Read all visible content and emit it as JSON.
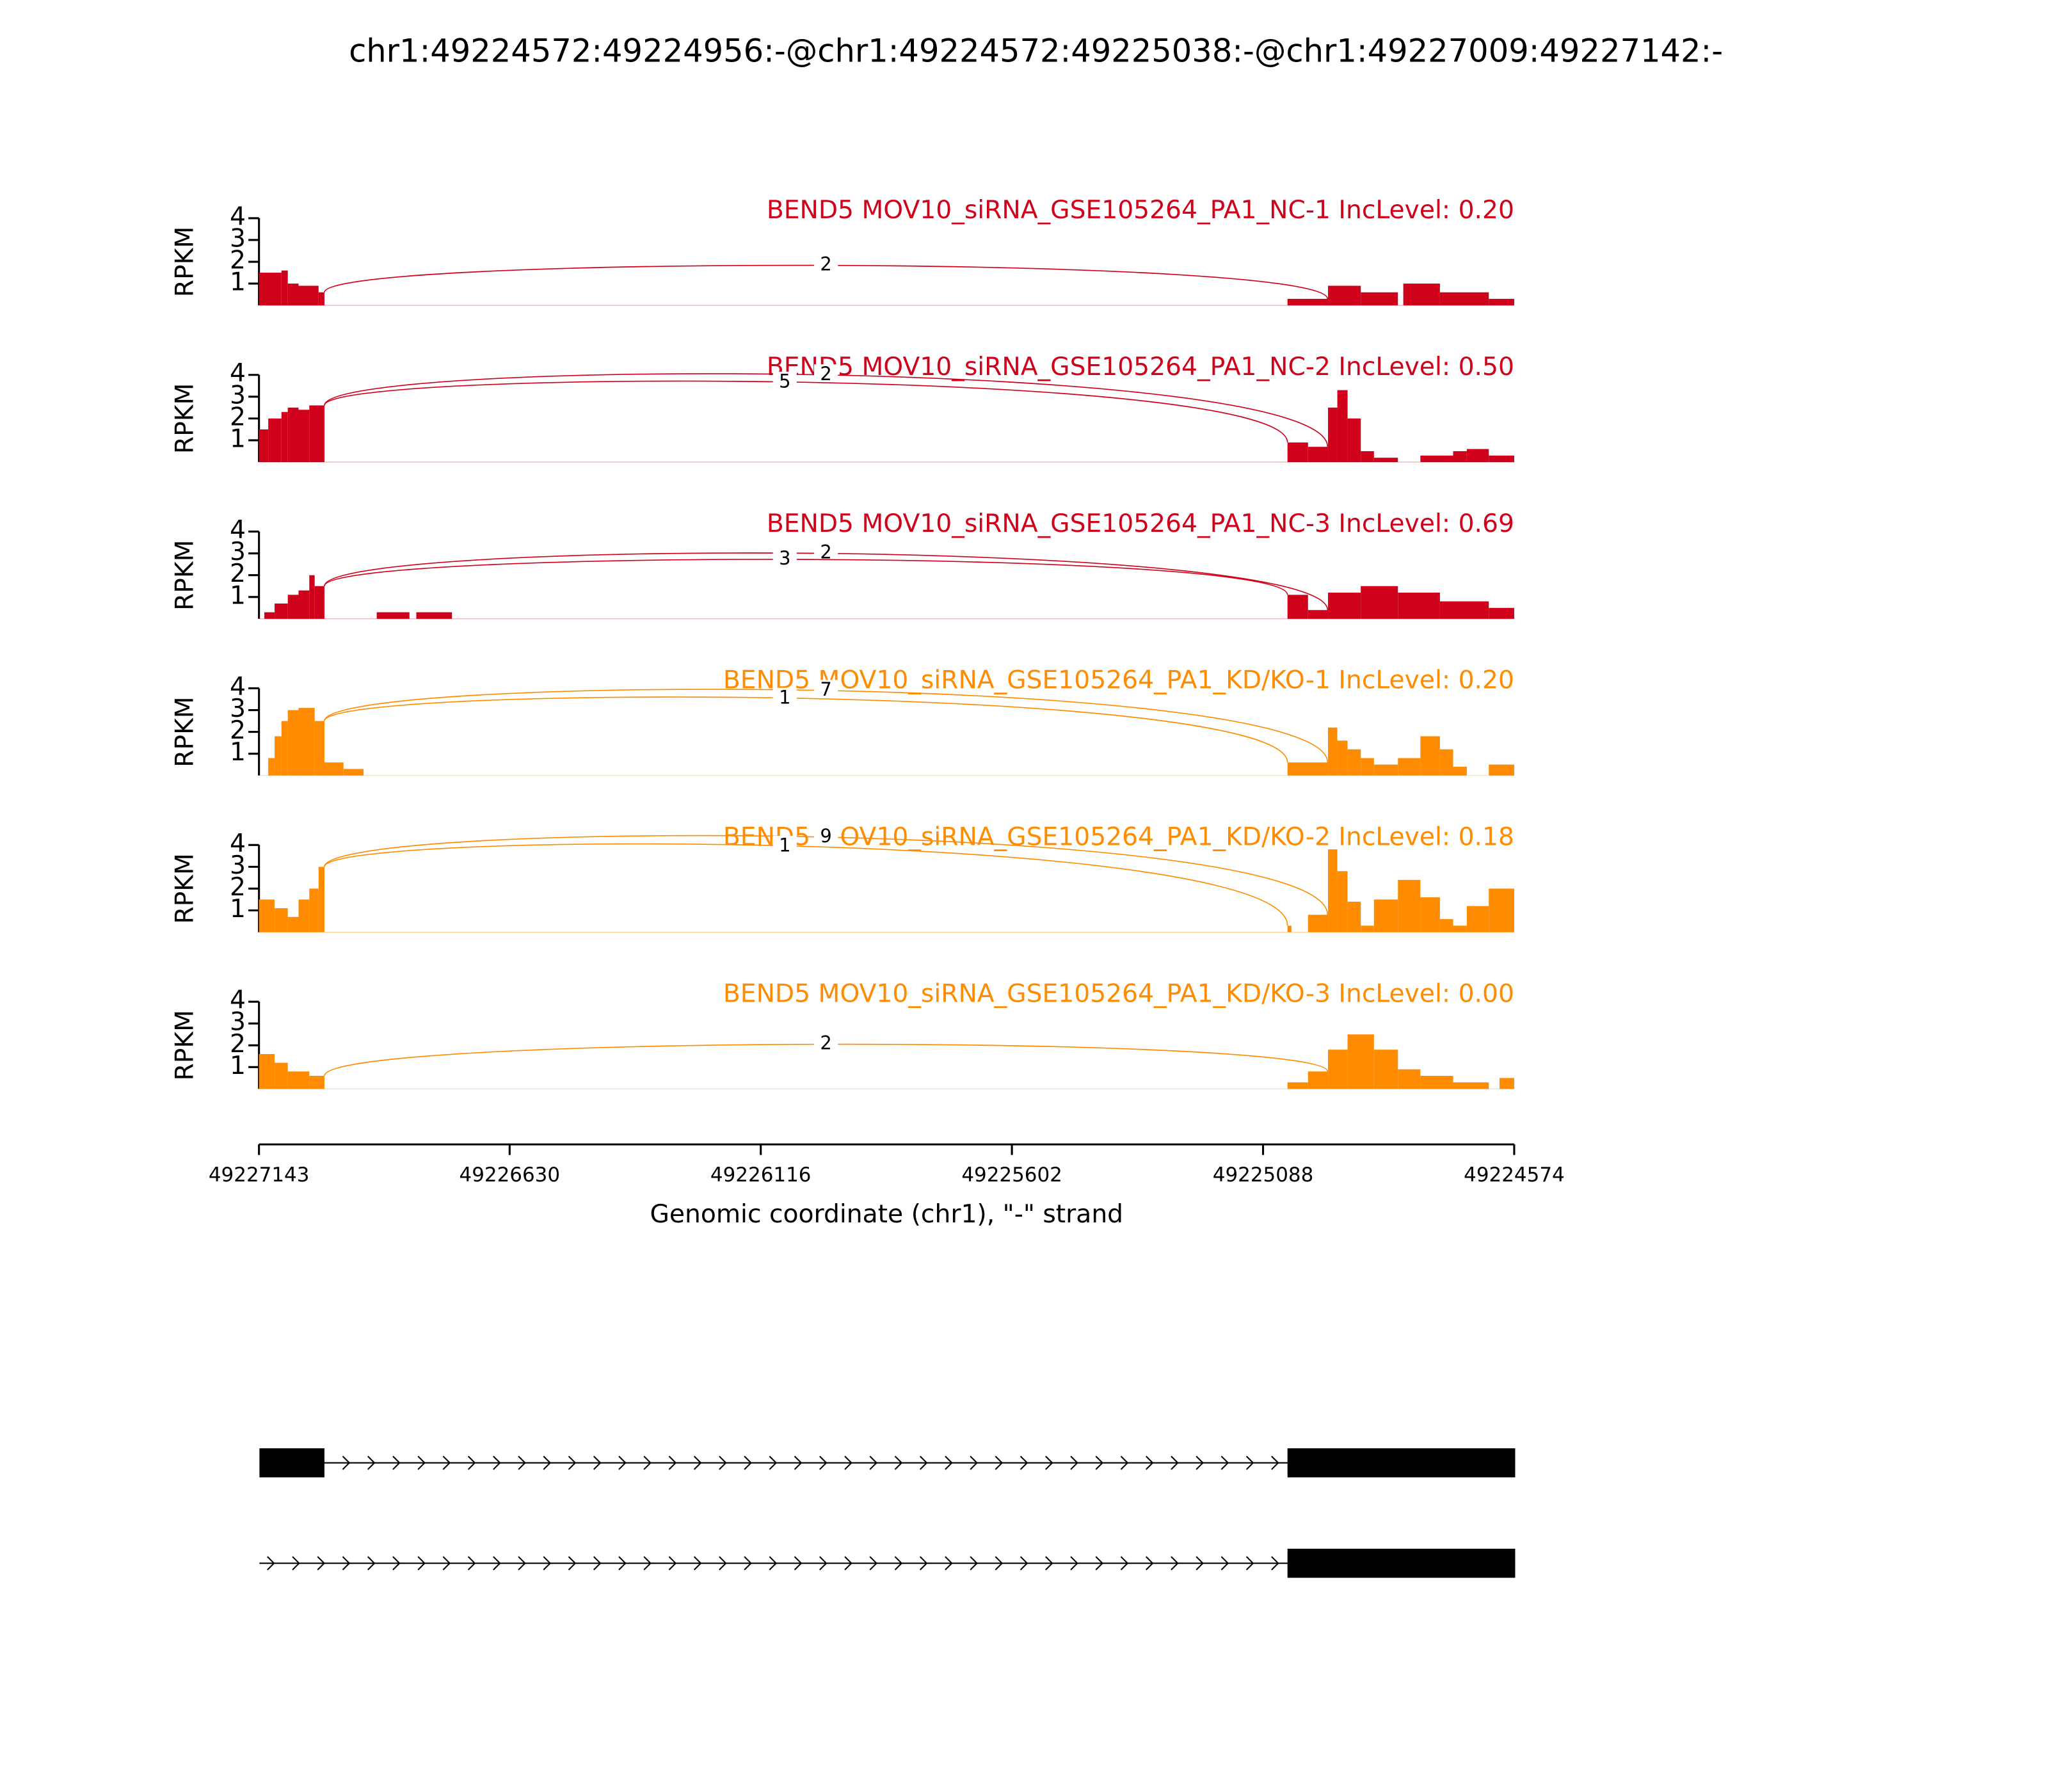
{
  "chart_data": {
    "type": "sashimi",
    "title": "chr1:49224572:49224956:-@chr1:49224572:49225038:-@chr1:49227009:49227142:-",
    "xlabel": "Genomic coordinate (chr1), \"-\" strand",
    "xlim": [
      49227143,
      49224574
    ],
    "xticks": [
      49227143,
      49226630,
      49226116,
      49225602,
      49225088,
      49224574
    ],
    "ylabel": "RPKM",
    "ylim": [
      0,
      4
    ],
    "yticks": [
      1,
      2,
      3,
      4
    ],
    "tracks": [
      {
        "name": "BEND5 MOV10_siRNA_GSE105264_PA1_NC-1 IncLevel: 0.20",
        "color": "#d0021b",
        "coverage": [
          [
            49227143,
            49227097,
            1.5
          ],
          [
            49227097,
            49227084,
            1.6
          ],
          [
            49227084,
            49227062,
            1.0
          ],
          [
            49227062,
            49227021,
            0.9
          ],
          [
            49227021,
            49227009,
            0.6
          ],
          [
            49225038,
            49224955,
            0.3
          ],
          [
            49224955,
            49224888,
            0.9
          ],
          [
            49224888,
            49224812,
            0.6
          ],
          [
            49224801,
            49224726,
            1.0
          ],
          [
            49224726,
            49224626,
            0.6
          ],
          [
            49224626,
            49224574,
            0.3
          ]
        ],
        "junctions": [
          {
            "start": 49227009,
            "end": 49224956,
            "label": "2"
          }
        ]
      },
      {
        "name": "BEND5 MOV10_siRNA_GSE105264_PA1_NC-2 IncLevel: 0.50",
        "color": "#d0021b",
        "coverage": [
          [
            49227143,
            49227124,
            1.5
          ],
          [
            49227124,
            49227097,
            2.0
          ],
          [
            49227097,
            49227084,
            2.3
          ],
          [
            49227084,
            49227062,
            2.5
          ],
          [
            49227062,
            49227040,
            2.4
          ],
          [
            49227040,
            49227009,
            2.6
          ],
          [
            49225038,
            49224996,
            0.9
          ],
          [
            49224996,
            49224955,
            0.7
          ],
          [
            49224955,
            49224936,
            2.5
          ],
          [
            49224936,
            49224915,
            3.3
          ],
          [
            49224915,
            49224888,
            2.0
          ],
          [
            49224888,
            49224861,
            0.5
          ],
          [
            49224861,
            49224812,
            0.2
          ],
          [
            49224766,
            49224699,
            0.3
          ],
          [
            49224699,
            49224671,
            0.5
          ],
          [
            49224671,
            49224626,
            0.6
          ],
          [
            49224626,
            49224574,
            0.3
          ]
        ],
        "junctions": [
          {
            "start": 49227009,
            "end": 49224956,
            "label": "2"
          },
          {
            "start": 49227009,
            "end": 49225038,
            "label": "5"
          }
        ]
      },
      {
        "name": "BEND5 MOV10_siRNA_GSE105264_PA1_NC-3 IncLevel: 0.69",
        "color": "#d0021b",
        "coverage": [
          [
            49227132,
            49227111,
            0.3
          ],
          [
            49227111,
            49227084,
            0.7
          ],
          [
            49227084,
            49227062,
            1.1
          ],
          [
            49227062,
            49227040,
            1.3
          ],
          [
            49227040,
            49227029,
            2.0
          ],
          [
            49227029,
            49227009,
            1.5
          ],
          [
            49226902,
            49226835,
            0.3
          ],
          [
            49226821,
            49226748,
            0.3
          ],
          [
            49225038,
            49224996,
            1.1
          ],
          [
            49224996,
            49224955,
            0.4
          ],
          [
            49224955,
            49224888,
            1.2
          ],
          [
            49224888,
            49224812,
            1.5
          ],
          [
            49224812,
            49224726,
            1.2
          ],
          [
            49224726,
            49224626,
            0.8
          ],
          [
            49224626,
            49224574,
            0.5
          ]
        ],
        "junctions": [
          {
            "start": 49227009,
            "end": 49224956,
            "label": "2"
          },
          {
            "start": 49227009,
            "end": 49225038,
            "label": "3"
          }
        ]
      },
      {
        "name": "BEND5 MOV10_siRNA_GSE105264_PA1_KD/KO-1 IncLevel: 0.20",
        "color": "#ff8c00",
        "coverage": [
          [
            49227124,
            49227111,
            0.8
          ],
          [
            49227111,
            49227097,
            1.8
          ],
          [
            49227097,
            49227084,
            2.5
          ],
          [
            49227084,
            49227062,
            3.0
          ],
          [
            49227062,
            49227029,
            3.1
          ],
          [
            49227029,
            49227009,
            2.5
          ],
          [
            49227009,
            49226970,
            0.6
          ],
          [
            49226970,
            49226929,
            0.3
          ],
          [
            49225038,
            49224955,
            0.6
          ],
          [
            49224955,
            49224936,
            2.2
          ],
          [
            49224936,
            49224915,
            1.6
          ],
          [
            49224915,
            49224888,
            1.2
          ],
          [
            49224888,
            49224861,
            0.8
          ],
          [
            49224861,
            49224812,
            0.5
          ],
          [
            49224812,
            49224766,
            0.8
          ],
          [
            49224766,
            49224726,
            1.8
          ],
          [
            49224726,
            49224699,
            1.2
          ],
          [
            49224699,
            49224671,
            0.4
          ],
          [
            49224626,
            49224574,
            0.5
          ]
        ],
        "junctions": [
          {
            "start": 49227009,
            "end": 49224956,
            "label": "7"
          },
          {
            "start": 49227009,
            "end": 49225038,
            "label": "1"
          }
        ]
      },
      {
        "name": "BEND5 MOV10_siRNA_GSE105264_PA1_KD/KO-2 IncLevel: 0.18",
        "color": "#ff8c00",
        "coverage": [
          [
            49227143,
            49227111,
            1.5
          ],
          [
            49227111,
            49227084,
            1.1
          ],
          [
            49227084,
            49227062,
            0.7
          ],
          [
            49227062,
            49227040,
            1.5
          ],
          [
            49227040,
            49227021,
            2.0
          ],
          [
            49227021,
            49227009,
            3.0
          ],
          [
            49225038,
            49225030,
            0.3
          ],
          [
            49224996,
            49224955,
            0.8
          ],
          [
            49224955,
            49224936,
            3.8
          ],
          [
            49224936,
            49224915,
            2.8
          ],
          [
            49224915,
            49224888,
            1.4
          ],
          [
            49224888,
            49224861,
            0.3
          ],
          [
            49224861,
            49224812,
            1.5
          ],
          [
            49224812,
            49224766,
            2.4
          ],
          [
            49224766,
            49224726,
            1.6
          ],
          [
            49224726,
            49224699,
            0.6
          ],
          [
            49224699,
            49224671,
            0.3
          ],
          [
            49224671,
            49224626,
            1.2
          ],
          [
            49224626,
            49224574,
            2.0
          ]
        ],
        "junctions": [
          {
            "start": 49227009,
            "end": 49224956,
            "label": "9"
          },
          {
            "start": 49227009,
            "end": 49225038,
            "label": "1"
          }
        ]
      },
      {
        "name": "BEND5 MOV10_siRNA_GSE105264_PA1_KD/KO-3 IncLevel: 0.00",
        "color": "#ff8c00",
        "coverage": [
          [
            49227143,
            49227111,
            1.6
          ],
          [
            49227111,
            49227084,
            1.2
          ],
          [
            49227084,
            49227040,
            0.8
          ],
          [
            49227040,
            49227009,
            0.6
          ],
          [
            49225038,
            49224996,
            0.3
          ],
          [
            49224996,
            49224955,
            0.8
          ],
          [
            49224955,
            49224915,
            1.8
          ],
          [
            49224915,
            49224861,
            2.5
          ],
          [
            49224861,
            49224812,
            1.8
          ],
          [
            49224812,
            49224766,
            0.9
          ],
          [
            49224766,
            49224699,
            0.6
          ],
          [
            49224699,
            49224626,
            0.3
          ],
          [
            49224604,
            49224574,
            0.5
          ]
        ],
        "junctions": [
          {
            "start": 49227009,
            "end": 49224956,
            "label": "2"
          }
        ]
      }
    ],
    "transcripts": [
      {
        "start": 49227142,
        "end": 49224572,
        "exons": [
          [
            49227142,
            49227009
          ],
          [
            49225038,
            49224572
          ]
        ]
      },
      {
        "start": 49227142,
        "end": 49224572,
        "exons": [
          [
            49225038,
            49224572
          ]
        ]
      }
    ]
  }
}
